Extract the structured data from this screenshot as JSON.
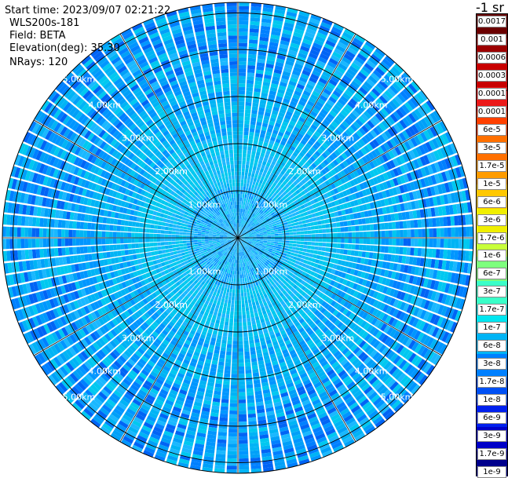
{
  "info": {
    "start_time": "Start time: 2023/09/07 02:21:22",
    "device": "WLS200s-181",
    "field": "Field: BETA",
    "elevation": "Elevation(deg): 35.30",
    "nrays": "NRays: 120"
  },
  "chart_data": {
    "type": "heatmap",
    "projection": "polar",
    "range_rings": [
      {
        "label": "1.00km",
        "value": 1.0
      },
      {
        "label": "2.00km",
        "value": 2.0
      },
      {
        "label": "3.00km",
        "value": 3.0
      },
      {
        "label": "4.00km",
        "value": 4.0
      },
      {
        "label": "5.00km",
        "value": 5.0
      }
    ],
    "n_rays": 120,
    "max_range_km": 5.0
  },
  "colorbar": {
    "unit": "-1 sr",
    "colors": [
      "#6b0000",
      "#9c0000",
      "#c80000",
      "#ec1a1a",
      "#ff4000",
      "#ff7000",
      "#ff9c00",
      "#ffc800",
      "#f0ef00",
      "#c8ff3a",
      "#7dff7d",
      "#3affc8",
      "#00e6f0",
      "#00b4f5",
      "#0080ff",
      "#0050f5",
      "#0020ee",
      "#0000c8",
      "#00008c"
    ],
    "labels": [
      "0.0017",
      "0.001",
      "0.0006",
      "0.0003",
      "0.00017",
      "0.0001",
      "6e-5",
      "3e-5",
      "1.7e-5",
      "1e-5",
      "6e-6",
      "3e-6",
      "1.7e-6",
      "1e-6",
      "6e-7",
      "3e-7",
      "1.7e-7",
      "1e-7",
      "6e-8",
      "3e-8",
      "1.7e-8",
      "1e-8",
      "6e-9",
      "3e-9",
      "1.7e-9",
      "1e-9"
    ]
  }
}
